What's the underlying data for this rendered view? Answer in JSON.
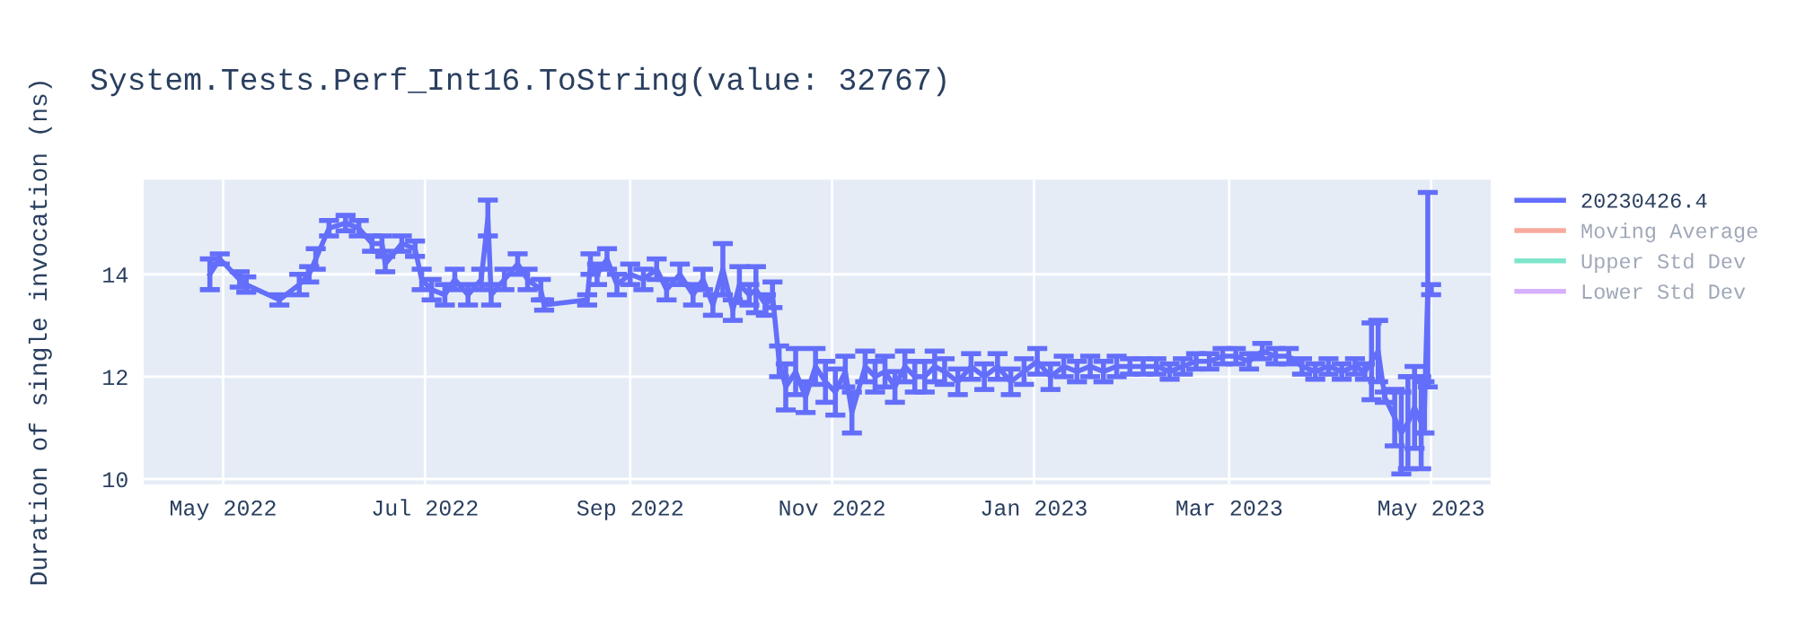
{
  "chart_data": {
    "type": "line",
    "title": "System.Tests.Perf_Int16.ToString(value: 32767)",
    "ylabel": "Duration of single invocation (ns)",
    "x": [
      "2022-04-27",
      "2022-04-30",
      "2022-05-06",
      "2022-05-08",
      "2022-05-18",
      "2022-05-24",
      "2022-05-27",
      "2022-05-29",
      "2022-06-02",
      "2022-06-07",
      "2022-06-11",
      "2022-06-15",
      "2022-06-18",
      "2022-06-19",
      "2022-06-24",
      "2022-06-28",
      "2022-06-30",
      "2022-07-03",
      "2022-07-07",
      "2022-07-10",
      "2022-07-14",
      "2022-07-18",
      "2022-07-20",
      "2022-07-21",
      "2022-07-25",
      "2022-07-29",
      "2022-08-01",
      "2022-08-05",
      "2022-08-06",
      "2022-08-19",
      "2022-08-20",
      "2022-08-22",
      "2022-08-25",
      "2022-08-28",
      "2022-09-01",
      "2022-09-05",
      "2022-09-09",
      "2022-09-12",
      "2022-09-16",
      "2022-09-20",
      "2022-09-23",
      "2022-09-26",
      "2022-09-29",
      "2022-10-02",
      "2022-10-04",
      "2022-10-07",
      "2022-10-09",
      "2022-10-12",
      "2022-10-14",
      "2022-10-16",
      "2022-10-18",
      "2022-10-21",
      "2022-10-24",
      "2022-10-27",
      "2022-10-30",
      "2022-11-02",
      "2022-11-05",
      "2022-11-07",
      "2022-11-11",
      "2022-11-14",
      "2022-11-17",
      "2022-11-20",
      "2022-11-23",
      "2022-11-26",
      "2022-11-29",
      "2022-12-02",
      "2022-12-05",
      "2022-12-09",
      "2022-12-13",
      "2022-12-17",
      "2022-12-21",
      "2022-12-25",
      "2022-12-29",
      "2023-01-02",
      "2023-01-06",
      "2023-01-10",
      "2023-01-14",
      "2023-01-18",
      "2023-01-22",
      "2023-01-26",
      "2023-01-30",
      "2023-02-03",
      "2023-02-07",
      "2023-02-11",
      "2023-02-15",
      "2023-02-19",
      "2023-02-23",
      "2023-02-27",
      "2023-03-03",
      "2023-03-07",
      "2023-03-11",
      "2023-03-15",
      "2023-03-19",
      "2023-03-23",
      "2023-03-27",
      "2023-03-31",
      "2023-04-04",
      "2023-04-08",
      "2023-04-11",
      "2023-04-13",
      "2023-04-15",
      "2023-04-17",
      "2023-04-20",
      "2023-04-22",
      "2023-04-24",
      "2023-04-26",
      "2023-04-28",
      "2023-04-29",
      "2023-04-30",
      "2023-05-01"
    ],
    "series": [
      {
        "name": "20230426.4",
        "color": "#636efa",
        "values": [
          14.0,
          14.3,
          13.9,
          13.8,
          13.5,
          13.8,
          14.0,
          14.3,
          14.9,
          15.0,
          14.9,
          14.6,
          14.6,
          14.2,
          14.6,
          14.5,
          13.9,
          13.7,
          13.6,
          13.9,
          13.6,
          13.9,
          15.1,
          13.6,
          13.9,
          14.2,
          13.9,
          13.7,
          13.4,
          13.5,
          14.2,
          14.0,
          14.3,
          13.8,
          14.0,
          13.9,
          14.1,
          13.7,
          14.0,
          13.6,
          13.9,
          13.4,
          14.1,
          13.3,
          13.8,
          13.6,
          13.7,
          13.4,
          13.6,
          12.3,
          11.8,
          12.1,
          11.6,
          12.2,
          11.9,
          11.7,
          12.1,
          11.3,
          12.2,
          12.0,
          12.1,
          11.8,
          12.2,
          12.0,
          12.0,
          12.2,
          12.1,
          11.9,
          12.2,
          12.0,
          12.2,
          11.9,
          12.1,
          12.3,
          12.0,
          12.2,
          12.1,
          12.2,
          12.1,
          12.2,
          12.2,
          12.2,
          12.2,
          12.1,
          12.2,
          12.3,
          12.3,
          12.4,
          12.4,
          12.3,
          12.5,
          12.4,
          12.4,
          12.2,
          12.1,
          12.2,
          12.1,
          12.2,
          12.1,
          12.3,
          12.5,
          11.6,
          11.2,
          10.9,
          11.1,
          11.4,
          11.1,
          11.4,
          13.7,
          13.7
        ],
        "errors": [
          0.3,
          0.1,
          0.15,
          0.15,
          0.1,
          0.2,
          0.15,
          0.2,
          0.15,
          0.15,
          0.15,
          0.15,
          0.15,
          0.15,
          0.15,
          0.15,
          0.2,
          0.2,
          0.2,
          0.2,
          0.2,
          0.2,
          0.35,
          0.2,
          0.2,
          0.2,
          0.2,
          0.2,
          0.1,
          0.1,
          0.2,
          0.2,
          0.2,
          0.2,
          0.2,
          0.2,
          0.2,
          0.2,
          0.2,
          0.2,
          0.2,
          0.2,
          0.5,
          0.2,
          0.35,
          0.2,
          0.45,
          0.2,
          0.25,
          0.3,
          0.45,
          0.45,
          0.3,
          0.35,
          0.4,
          0.45,
          0.3,
          0.4,
          0.3,
          0.3,
          0.3,
          0.3,
          0.3,
          0.3,
          0.3,
          0.3,
          0.25,
          0.25,
          0.25,
          0.25,
          0.25,
          0.25,
          0.25,
          0.25,
          0.25,
          0.2,
          0.2,
          0.2,
          0.2,
          0.2,
          0.15,
          0.15,
          0.15,
          0.15,
          0.15,
          0.15,
          0.15,
          0.15,
          0.15,
          0.15,
          0.15,
          0.15,
          0.15,
          0.15,
          0.15,
          0.15,
          0.15,
          0.15,
          0.15,
          0.75,
          0.6,
          0.1,
          0.55,
          0.8,
          0.9,
          0.8,
          0.9,
          0.5,
          1.9,
          0.1
        ]
      },
      {
        "name": "Moving Average",
        "color": "#ef553b",
        "values": [
          null,
          null,
          null,
          null,
          null,
          null,
          null,
          null,
          null,
          null,
          null,
          null,
          null,
          null,
          null,
          null,
          null,
          null,
          null,
          null,
          null,
          null,
          null,
          null,
          null,
          null,
          null,
          null,
          null,
          null,
          null,
          null,
          null,
          null,
          null,
          null,
          null,
          null,
          null,
          null,
          null,
          null,
          null,
          null,
          null,
          null,
          null,
          null,
          null,
          null,
          null,
          null,
          null,
          null,
          null,
          null,
          null,
          null,
          null,
          null,
          null,
          null,
          null,
          null,
          null,
          null,
          null,
          null,
          null,
          null,
          null,
          null,
          null,
          null,
          null,
          null,
          null,
          null,
          null,
          null,
          null,
          null,
          null,
          null,
          null,
          null,
          null,
          null,
          null,
          null,
          null,
          null,
          null,
          null,
          null,
          null,
          null,
          null,
          null,
          null,
          null,
          null,
          null,
          null,
          null,
          null,
          null,
          null,
          null,
          null
        ]
      },
      {
        "name": "Upper Std Dev",
        "color": "#00cc96",
        "values": [
          null,
          null,
          null,
          null,
          null,
          null,
          null,
          null,
          null,
          null,
          null,
          null,
          null,
          null,
          null,
          null,
          null,
          null,
          null,
          null,
          null,
          null,
          null,
          null,
          null,
          null,
          null,
          null,
          null,
          null,
          null,
          null,
          null,
          null,
          null,
          null,
          null,
          null,
          null,
          null,
          null,
          null,
          null,
          null,
          null,
          null,
          null,
          null,
          null,
          null,
          null,
          null,
          null,
          null,
          null,
          null,
          null,
          null,
          null,
          null,
          null,
          null,
          null,
          null,
          null,
          null,
          null,
          null,
          null,
          null,
          null,
          null,
          null,
          null,
          null,
          null,
          null,
          null,
          null,
          null,
          null,
          null,
          null,
          null,
          null,
          null,
          null,
          null,
          null,
          null,
          null,
          null,
          null,
          null,
          null,
          null,
          null,
          null,
          null,
          null,
          null,
          null,
          null,
          null,
          null,
          null,
          null,
          null,
          null,
          null
        ]
      },
      {
        "name": "Lower Std Dev",
        "color": "#ab63fa",
        "values": [
          null,
          null,
          null,
          null,
          null,
          null,
          null,
          null,
          null,
          null,
          null,
          null,
          null,
          null,
          null,
          null,
          null,
          null,
          null,
          null,
          null,
          null,
          null,
          null,
          null,
          null,
          null,
          null,
          null,
          null,
          null,
          null,
          null,
          null,
          null,
          null,
          null,
          null,
          null,
          null,
          null,
          null,
          null,
          null,
          null,
          null,
          null,
          null,
          null,
          null,
          null,
          null,
          null,
          null,
          null,
          null,
          null,
          null,
          null,
          null,
          null,
          null,
          null,
          null,
          null,
          null,
          null,
          null,
          null,
          null,
          null,
          null,
          null,
          null,
          null,
          null,
          null,
          null,
          null,
          null,
          null,
          null,
          null,
          null,
          null,
          null,
          null,
          null,
          null,
          null,
          null,
          null,
          null,
          null,
          null,
          null,
          null,
          null,
          null,
          null,
          null,
          null,
          null,
          null,
          null,
          null,
          null,
          null,
          null,
          null
        ]
      }
    ],
    "xlim": [
      "2022-04-07",
      "2023-05-19"
    ],
    "xticks": [
      {
        "value": "2022-05-01",
        "label": "May 2022"
      },
      {
        "value": "2022-07-01",
        "label": "Jul 2022"
      },
      {
        "value": "2022-09-01",
        "label": "Sep 2022"
      },
      {
        "value": "2022-11-01",
        "label": "Nov 2022"
      },
      {
        "value": "2023-01-01",
        "label": "Jan 2023"
      },
      {
        "value": "2023-03-01",
        "label": "Mar 2023"
      },
      {
        "value": "2023-05-01",
        "label": "May 2023"
      }
    ],
    "ylim": [
      9.9,
      15.85
    ],
    "yticks": [
      10,
      12,
      14
    ],
    "grid": true,
    "legend": "top right",
    "marker": "none",
    "line_style": "solid"
  }
}
